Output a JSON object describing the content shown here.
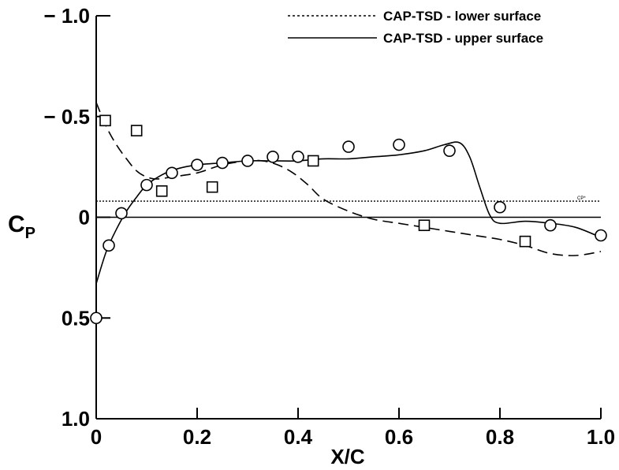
{
  "chart_data": {
    "type": "line",
    "xlabel": "X/C",
    "ylabel": "C",
    "ylabel_sub": "P",
    "xlim": [
      0,
      1.0
    ],
    "ylim": [
      1.0,
      -1.0
    ],
    "y_inverted": true,
    "grid": false,
    "legend_placement": "top-right",
    "x_ticks": [
      {
        "value": 0,
        "label": "0"
      },
      {
        "value": 0.2,
        "label": "0.2"
      },
      {
        "value": 0.4,
        "label": "0.4"
      },
      {
        "value": 0.6,
        "label": "0.6"
      },
      {
        "value": 0.8,
        "label": "0.8"
      },
      {
        "value": 1.0,
        "label": "1.0"
      }
    ],
    "y_ticks": [
      {
        "value": -1.0,
        "label": "− 1.0"
      },
      {
        "value": -0.5,
        "label": "− 0.5"
      },
      {
        "value": 0,
        "label": "0"
      },
      {
        "value": 0.5,
        "label": "0.5"
      },
      {
        "value": 1.0,
        "label": "1.0"
      }
    ],
    "legend": [
      {
        "label": "CAP-TSD - lower surface",
        "style": "dotted"
      },
      {
        "label": "CAP-TSD - upper surface",
        "style": "solid"
      }
    ],
    "reference_lines": [
      {
        "value": -0.08,
        "style": "dotted",
        "label": "CP*"
      },
      {
        "value": 0,
        "style": "solid",
        "label": ""
      }
    ],
    "series": [
      {
        "name": "CAP-TSD - upper surface",
        "style": "solid",
        "x": [
          0,
          0.02,
          0.04,
          0.06,
          0.08,
          0.1,
          0.13,
          0.16,
          0.2,
          0.25,
          0.3,
          0.35,
          0.4,
          0.45,
          0.5,
          0.55,
          0.6,
          0.65,
          0.69,
          0.72,
          0.74,
          0.76,
          0.78,
          0.8,
          0.85,
          0.9,
          0.95,
          1.0
        ],
        "y": [
          0.33,
          0.17,
          0.06,
          -0.03,
          -0.1,
          -0.16,
          -0.21,
          -0.24,
          -0.26,
          -0.27,
          -0.28,
          -0.28,
          -0.28,
          -0.29,
          -0.29,
          -0.3,
          -0.31,
          -0.33,
          -0.36,
          -0.37,
          -0.3,
          -0.15,
          -0.01,
          0.03,
          0.02,
          0.03,
          0.05,
          0.1
        ]
      },
      {
        "name": "",
        "style": "dashed",
        "x": [
          0,
          0.02,
          0.04,
          0.06,
          0.08,
          0.1,
          0.12,
          0.15,
          0.2,
          0.25,
          0.3,
          0.33,
          0.36,
          0.39,
          0.42,
          0.45,
          0.5,
          0.55,
          0.6,
          0.65,
          0.7,
          0.75,
          0.8,
          0.85,
          0.9,
          0.95,
          1.0
        ],
        "y": [
          -0.57,
          -0.45,
          -0.36,
          -0.29,
          -0.23,
          -0.2,
          -0.19,
          -0.2,
          -0.22,
          -0.26,
          -0.28,
          -0.28,
          -0.26,
          -0.22,
          -0.16,
          -0.09,
          -0.03,
          0.01,
          0.03,
          0.05,
          0.07,
          0.09,
          0.11,
          0.14,
          0.18,
          0.19,
          0.17
        ]
      },
      {
        "name": "",
        "marker": "circle",
        "x": [
          0,
          0.025,
          0.05,
          0.1,
          0.15,
          0.2,
          0.25,
          0.3,
          0.35,
          0.4,
          0.5,
          0.6,
          0.7,
          0.8,
          0.9,
          1.0
        ],
        "y": [
          0.5,
          0.14,
          -0.02,
          -0.16,
          -0.22,
          -0.26,
          -0.27,
          -0.28,
          -0.3,
          -0.3,
          -0.35,
          -0.36,
          -0.33,
          -0.05,
          0.04,
          0.09
        ]
      },
      {
        "name": "",
        "marker": "square",
        "x": [
          0.018,
          0.08,
          0.13,
          0.23,
          0.43,
          0.65,
          0.85
        ],
        "y": [
          -0.48,
          -0.43,
          -0.13,
          -0.15,
          -0.28,
          0.04,
          0.12
        ]
      }
    ]
  }
}
